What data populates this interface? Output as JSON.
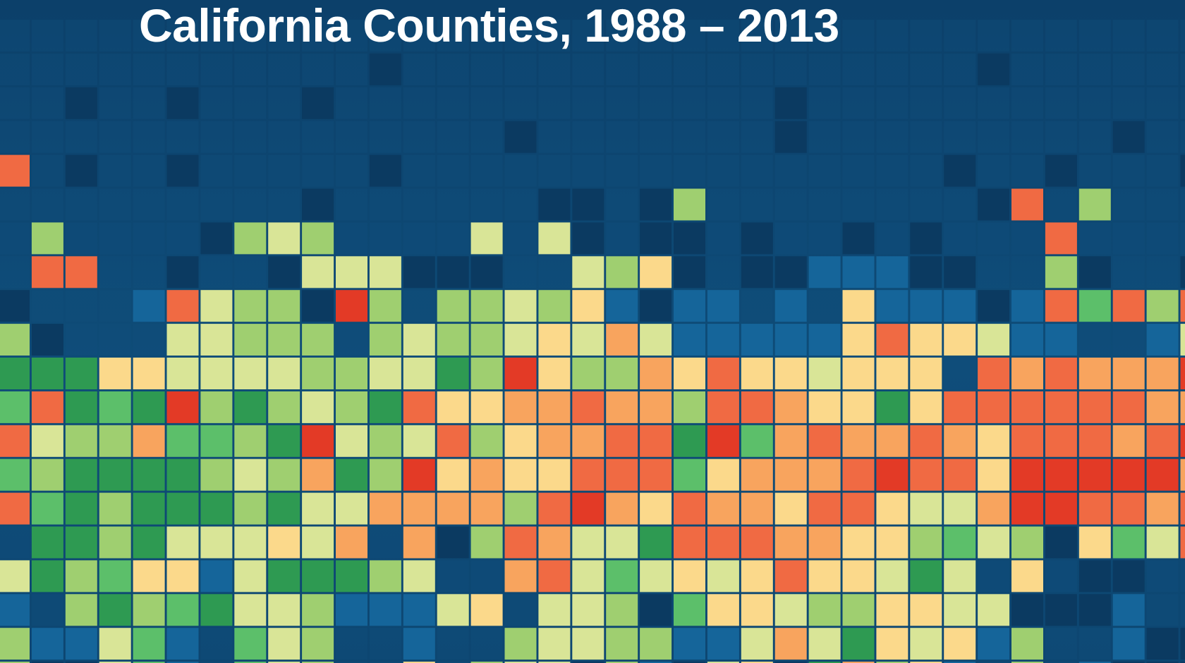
{
  "chart_data": {
    "type": "heatmap",
    "title": "California Counties, 1988 – 2013",
    "background": "#0e4773",
    "palette": {
      "0": "#0b3a61",
      "1": "#12507d",
      "2": "#15659a",
      "g": "#2e9a52",
      "G": "#5cbf6a",
      "L": "#9fcf70",
      "Y": "#d9e597",
      "C": "#fbd98b",
      "O": "#f8a45e",
      "R": "#f06a43",
      "D": "#e33a26"
    },
    "rows": [
      "1111111111111111111111111111111111111",
      "1111111111101111111111111111101111111",
      "1101101110111111111111101111111111110",
      "1111111111111110111111101111111110111",
      "R10110111110111111111111111101101110R",
      "11111111101111110010L111111110R1L1111",
      "1L11110LYL1111Y1Y01001011010111R11111",
      "1RR110110YYY00011YLC01002220011L01100",
      "01112RYLL0DL1LLYLC2022121C22202RGRLR2OD",
      "L0111YYLLL1LYLLYCYOY22222CRCCY22112YROLDR",
      "gggCCYYYYLLYYgLDCLLOCRCCYCCC1ROROOODDgRLL",
      "GRgGgDLgLYLgRCCOOROOLRROCCgCRRRRRROOORYY",
      "RYLLOGGLgDYLYRLCOORRgDGOROOROCRRRORDDDRRR",
      "GLggggLYLOgLDCOCCRRRGCOOORDRRCDDDDDOCDRR",
      "RGgLgggLgYYOOOOLRDOCROOCRRCYYODDRROROYYL1",
      "1ggLgYYYCYO1O0LROYYgRRROOCCLGYL0CGYRR1R1",
      "YgLGCC2YgggLY11ORYGYCYCRCCYgY1C10011201",
      "21LgLGgYYL222YC1YYL0GCCYLLCCYY0002110R0",
      "L22YG21GYL11211LYYLL22YOYgCYC2L11200012"
    ],
    "tall_bottom_row": [
      "L00YG21GYL11C1LYY0L20YC0gOLC21L1200001R2"
    ]
  }
}
